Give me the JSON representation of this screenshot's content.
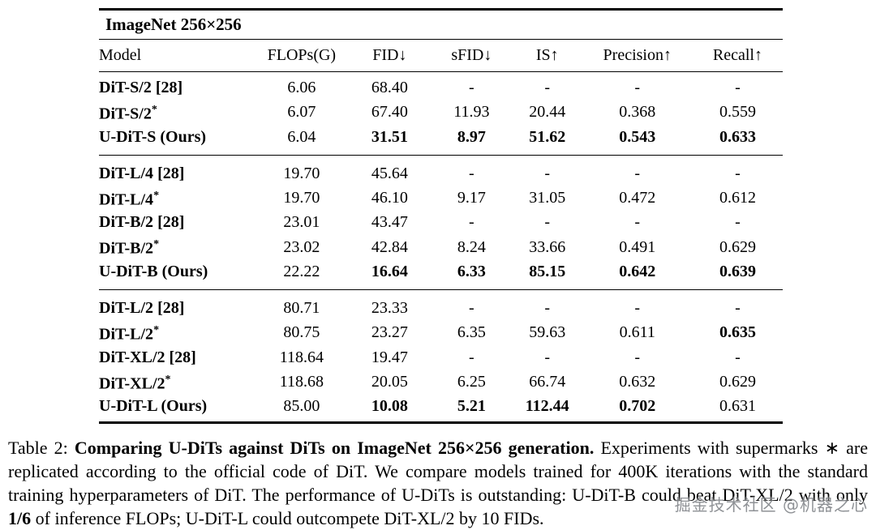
{
  "table": {
    "title": "ImageNet 256×256",
    "columns": [
      "Model",
      "FLOPs(G)",
      "FID↓",
      "sFID↓",
      "IS↑",
      "Precision↑",
      "Recall↑"
    ],
    "groups": [
      {
        "rows": [
          {
            "model": "DiT-S/2",
            "cite": "[28]",
            "star": false,
            "cells": [
              "6.06",
              "68.40",
              "-",
              "-",
              "-",
              "-"
            ],
            "bold": [
              false,
              false,
              false,
              false,
              false,
              false
            ]
          },
          {
            "model": "DiT-S/2",
            "cite": "",
            "star": true,
            "cells": [
              "6.07",
              "67.40",
              "11.93",
              "20.44",
              "0.368",
              "0.559"
            ],
            "bold": [
              false,
              false,
              false,
              false,
              false,
              false
            ]
          },
          {
            "model": "U-DiT-S (Ours)",
            "cite": "",
            "star": false,
            "cells": [
              "6.04",
              "31.51",
              "8.97",
              "51.62",
              "0.543",
              "0.633"
            ],
            "bold": [
              false,
              true,
              true,
              true,
              true,
              true
            ]
          }
        ]
      },
      {
        "rows": [
          {
            "model": "DiT-L/4",
            "cite": "[28]",
            "star": false,
            "cells": [
              "19.70",
              "45.64",
              "-",
              "-",
              "-",
              "-"
            ],
            "bold": [
              false,
              false,
              false,
              false,
              false,
              false
            ]
          },
          {
            "model": "DiT-L/4",
            "cite": "",
            "star": true,
            "cells": [
              "19.70",
              "46.10",
              "9.17",
              "31.05",
              "0.472",
              "0.612"
            ],
            "bold": [
              false,
              false,
              false,
              false,
              false,
              false
            ]
          },
          {
            "model": "DiT-B/2",
            "cite": "[28]",
            "star": false,
            "cells": [
              "23.01",
              "43.47",
              "-",
              "-",
              "-",
              "-"
            ],
            "bold": [
              false,
              false,
              false,
              false,
              false,
              false
            ]
          },
          {
            "model": "DiT-B/2",
            "cite": "",
            "star": true,
            "cells": [
              "23.02",
              "42.84",
              "8.24",
              "33.66",
              "0.491",
              "0.629"
            ],
            "bold": [
              false,
              false,
              false,
              false,
              false,
              false
            ]
          },
          {
            "model": "U-DiT-B (Ours)",
            "cite": "",
            "star": false,
            "cells": [
              "22.22",
              "16.64",
              "6.33",
              "85.15",
              "0.642",
              "0.639"
            ],
            "bold": [
              false,
              true,
              true,
              true,
              true,
              true
            ]
          }
        ]
      },
      {
        "rows": [
          {
            "model": "DiT-L/2",
            "cite": "[28]",
            "star": false,
            "cells": [
              "80.71",
              "23.33",
              "-",
              "-",
              "-",
              "-"
            ],
            "bold": [
              false,
              false,
              false,
              false,
              false,
              false
            ]
          },
          {
            "model": "DiT-L/2",
            "cite": "",
            "star": true,
            "cells": [
              "80.75",
              "23.27",
              "6.35",
              "59.63",
              "0.611",
              "0.635"
            ],
            "bold": [
              false,
              false,
              false,
              false,
              false,
              true
            ]
          },
          {
            "model": "DiT-XL/2",
            "cite": "[28]",
            "star": false,
            "cells": [
              "118.64",
              "19.47",
              "-",
              "-",
              "-",
              "-"
            ],
            "bold": [
              false,
              false,
              false,
              false,
              false,
              false
            ]
          },
          {
            "model": "DiT-XL/2",
            "cite": "",
            "star": true,
            "cells": [
              "118.68",
              "20.05",
              "6.25",
              "66.74",
              "0.632",
              "0.629"
            ],
            "bold": [
              false,
              false,
              false,
              false,
              false,
              false
            ]
          },
          {
            "model": "U-DiT-L (Ours)",
            "cite": "",
            "star": false,
            "cells": [
              "85.00",
              "10.08",
              "5.21",
              "112.44",
              "0.702",
              "0.631"
            ],
            "bold": [
              false,
              true,
              true,
              true,
              true,
              false
            ]
          }
        ]
      }
    ]
  },
  "caption": {
    "segments": [
      {
        "text": "Table 2: ",
        "bold": false
      },
      {
        "text": "Comparing U-DiTs against DiTs on ImageNet 256×256 generation.",
        "bold": true
      },
      {
        "text": " Experiments with supermarks ∗ are replicated according to the official code of DiT. We compare models trained for 400K iterations with the standard training hyperparameters of DiT. The performance of U-DiTs is outstanding: U-DiT-B could beat DiT-XL/2 with only ",
        "bold": false
      },
      {
        "text": "1/6",
        "bold": true
      },
      {
        "text": " of inference FLOPs; U-DiT-L could outcompete DiT-XL/2 by 10 FIDs.",
        "bold": false
      }
    ]
  },
  "watermark": {
    "text": "掘金技术社区 @机器之心"
  }
}
